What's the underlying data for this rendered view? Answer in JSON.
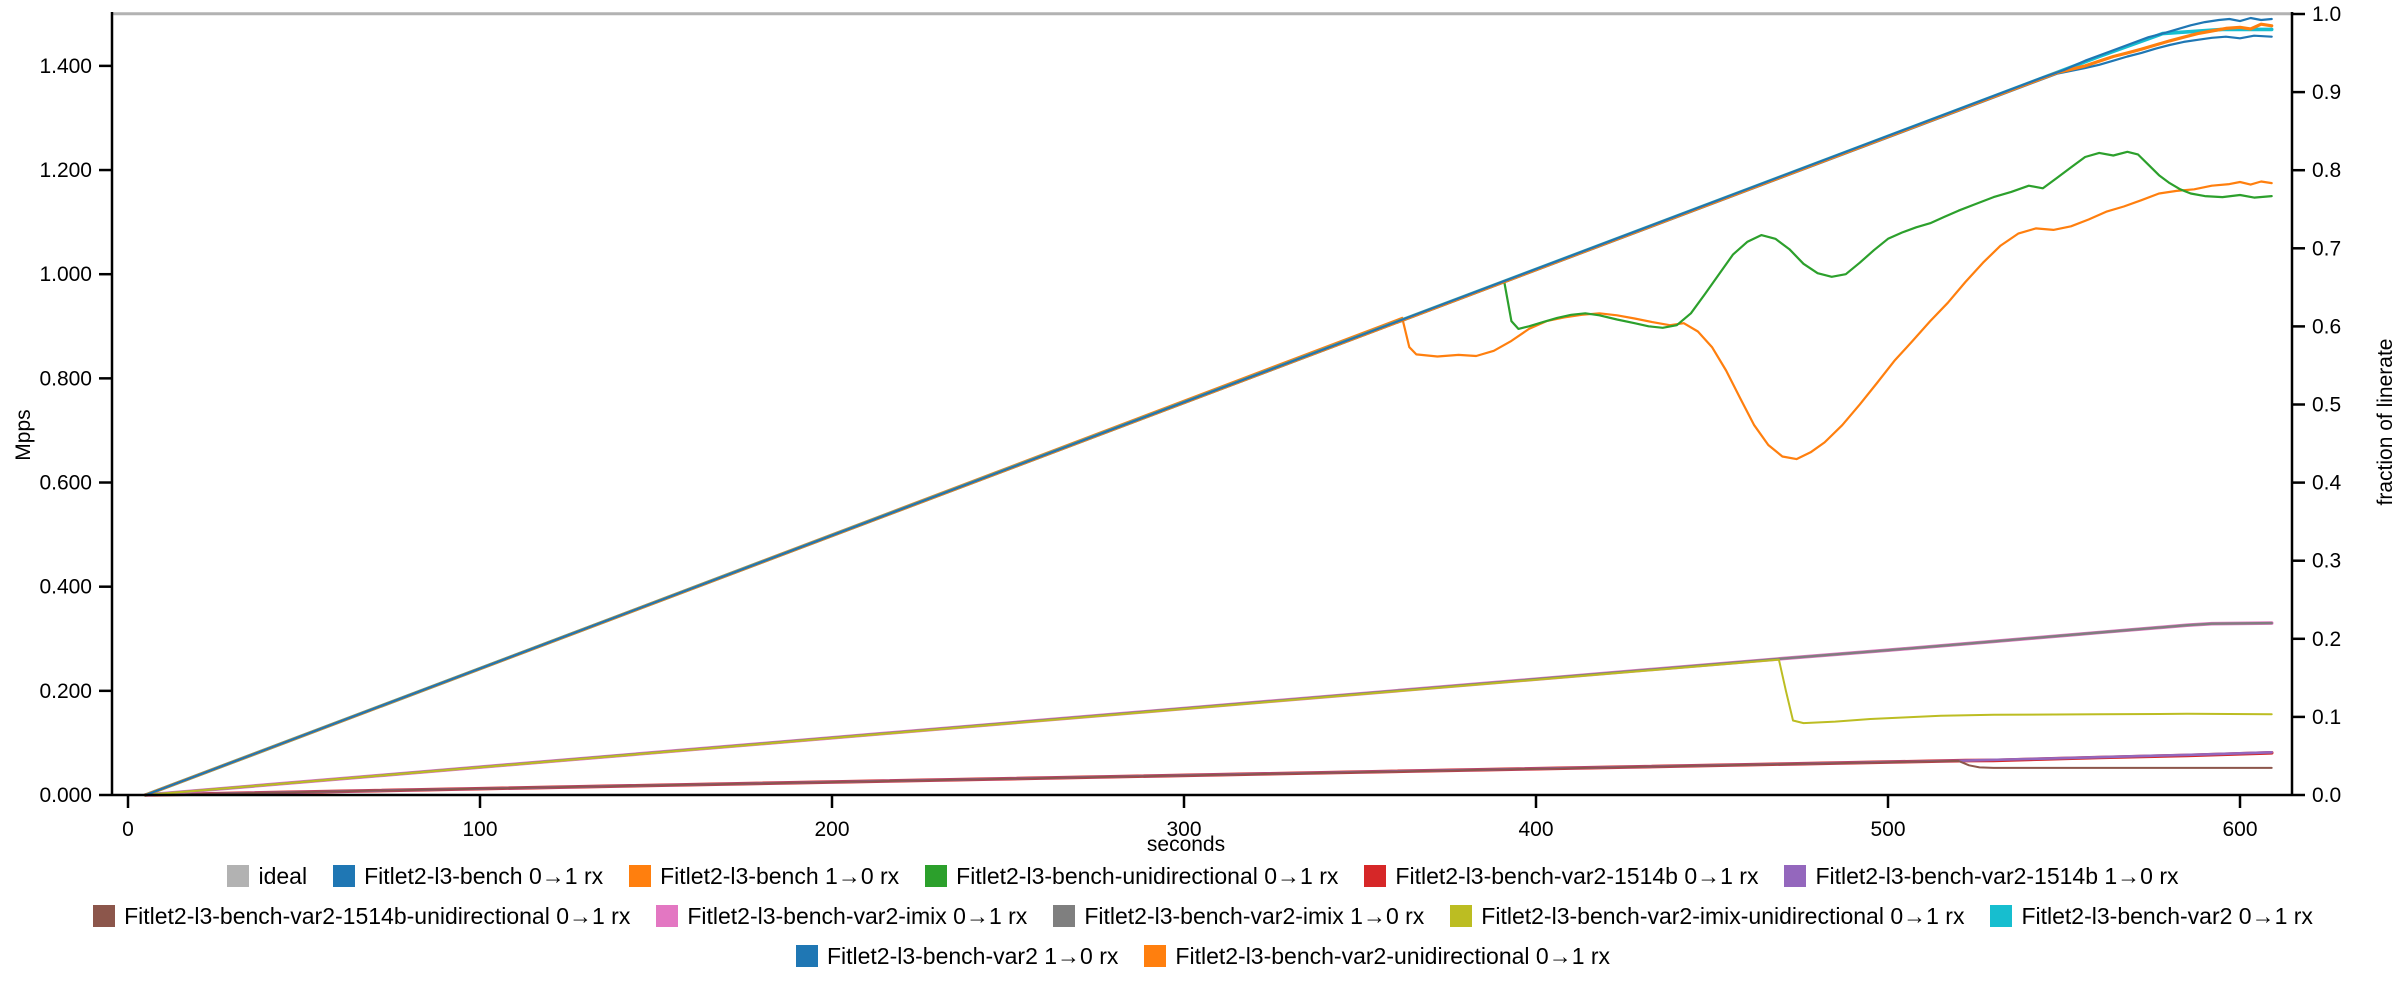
{
  "figure": {
    "background": "#ffffff",
    "axis_color": "#000000",
    "ideal_color": "#b2b2b2"
  },
  "chart_data": {
    "type": "line",
    "title": "",
    "xlabel": "seconds",
    "ylabel": "Mpps",
    "y2label": "fraction of linerate",
    "xlim": [
      0,
      615
    ],
    "ylim_mpps": [
      0.0,
      1.5
    ],
    "y2lim_fraction": [
      0.0,
      1.0
    ],
    "grid": false,
    "legend_position": "bottom",
    "x_ticks": [
      {
        "v": 0,
        "label": "0"
      },
      {
        "v": 100,
        "label": "100"
      },
      {
        "v": 200,
        "label": "200"
      },
      {
        "v": 300,
        "label": "300"
      },
      {
        "v": 400,
        "label": "400"
      },
      {
        "v": 500,
        "label": "500"
      },
      {
        "v": 600,
        "label": "600"
      }
    ],
    "y_ticks_left": [
      {
        "v": 0.0,
        "label": "0.000"
      },
      {
        "v": 0.2,
        "label": "0.200"
      },
      {
        "v": 0.4,
        "label": "0.400"
      },
      {
        "v": 0.6,
        "label": "0.600"
      },
      {
        "v": 0.8,
        "label": "0.800"
      },
      {
        "v": 1.0,
        "label": "1.000"
      },
      {
        "v": 1.2,
        "label": "1.200"
      },
      {
        "v": 1.4,
        "label": "1.400"
      }
    ],
    "y_ticks_right": [
      {
        "v": 0.0,
        "label": "0.0"
      },
      {
        "v": 0.1,
        "label": "0.1"
      },
      {
        "v": 0.2,
        "label": "0.2"
      },
      {
        "v": 0.3,
        "label": "0.3"
      },
      {
        "v": 0.4,
        "label": "0.4"
      },
      {
        "v": 0.5,
        "label": "0.5"
      },
      {
        "v": 0.6,
        "label": "0.6"
      },
      {
        "v": 0.7,
        "label": "0.7"
      },
      {
        "v": 0.8,
        "label": "0.8"
      },
      {
        "v": 0.9,
        "label": "0.9"
      },
      {
        "v": 1.0,
        "label": "1.0"
      }
    ],
    "series": [
      {
        "id": "ideal",
        "label": "ideal",
        "color": "#b2b2b2",
        "width": 3.0,
        "points": [
          [
            -4,
            1.5
          ],
          [
            615,
            1.5
          ]
        ]
      },
      {
        "id": "bench-1to0",
        "label": "Fitlet2-l3-bench 1→0 rx",
        "color": "#ff7f0e",
        "width": 2.2,
        "points": [
          [
            5,
            0
          ],
          [
            362,
            0.916
          ],
          [
            364,
            0.86
          ],
          [
            366,
            0.846
          ],
          [
            372,
            0.842
          ],
          [
            378,
            0.845
          ],
          [
            383,
            0.843
          ],
          [
            388,
            0.853
          ],
          [
            393,
            0.872
          ],
          [
            398,
            0.895
          ],
          [
            403,
            0.91
          ],
          [
            408,
            0.917
          ],
          [
            413,
            0.922
          ],
          [
            418,
            0.925
          ],
          [
            423,
            0.921
          ],
          [
            428,
            0.915
          ],
          [
            433,
            0.908
          ],
          [
            438,
            0.902
          ],
          [
            442,
            0.906
          ],
          [
            446,
            0.89
          ],
          [
            450,
            0.86
          ],
          [
            454,
            0.815
          ],
          [
            458,
            0.762
          ],
          [
            462,
            0.71
          ],
          [
            466,
            0.672
          ],
          [
            470,
            0.65
          ],
          [
            474,
            0.645
          ],
          [
            478,
            0.658
          ],
          [
            482,
            0.677
          ],
          [
            487,
            0.71
          ],
          [
            492,
            0.75
          ],
          [
            497,
            0.792
          ],
          [
            502,
            0.835
          ],
          [
            507,
            0.872
          ],
          [
            512,
            0.91
          ],
          [
            517,
            0.945
          ],
          [
            522,
            0.985
          ],
          [
            527,
            1.022
          ],
          [
            532,
            1.055
          ],
          [
            537,
            1.078
          ],
          [
            542,
            1.088
          ],
          [
            547,
            1.085
          ],
          [
            552,
            1.092
          ],
          [
            557,
            1.105
          ],
          [
            562,
            1.12
          ],
          [
            567,
            1.13
          ],
          [
            572,
            1.142
          ],
          [
            577,
            1.155
          ],
          [
            582,
            1.16
          ],
          [
            587,
            1.163
          ],
          [
            592,
            1.17
          ],
          [
            597,
            1.173
          ],
          [
            600,
            1.177
          ],
          [
            603,
            1.172
          ],
          [
            606,
            1.178
          ],
          [
            609,
            1.175
          ]
        ]
      },
      {
        "id": "bench-uni",
        "label": "Fitlet2-l3-bench-unidirectional 0→1 rx",
        "color": "#2ca02c",
        "width": 2.2,
        "points": [
          [
            5,
            0
          ],
          [
            391,
            0.985
          ],
          [
            393,
            0.91
          ],
          [
            395,
            0.895
          ],
          [
            398,
            0.9
          ],
          [
            402,
            0.908
          ],
          [
            406,
            0.916
          ],
          [
            410,
            0.922
          ],
          [
            414,
            0.925
          ],
          [
            418,
            0.921
          ],
          [
            423,
            0.913
          ],
          [
            428,
            0.906
          ],
          [
            432,
            0.9
          ],
          [
            436,
            0.897
          ],
          [
            440,
            0.902
          ],
          [
            444,
            0.925
          ],
          [
            448,
            0.962
          ],
          [
            452,
            1.0
          ],
          [
            456,
            1.038
          ],
          [
            460,
            1.062
          ],
          [
            464,
            1.075
          ],
          [
            468,
            1.068
          ],
          [
            472,
            1.048
          ],
          [
            476,
            1.02
          ],
          [
            480,
            1.002
          ],
          [
            484,
            0.995
          ],
          [
            488,
            1.0
          ],
          [
            492,
            1.022
          ],
          [
            496,
            1.046
          ],
          [
            500,
            1.068
          ],
          [
            504,
            1.08
          ],
          [
            508,
            1.09
          ],
          [
            512,
            1.098
          ],
          [
            516,
            1.11
          ],
          [
            520,
            1.122
          ],
          [
            525,
            1.135
          ],
          [
            530,
            1.148
          ],
          [
            535,
            1.158
          ],
          [
            540,
            1.17
          ],
          [
            544,
            1.165
          ],
          [
            548,
            1.185
          ],
          [
            552,
            1.205
          ],
          [
            556,
            1.225
          ],
          [
            560,
            1.233
          ],
          [
            564,
            1.228
          ],
          [
            568,
            1.235
          ],
          [
            571,
            1.23
          ],
          [
            574,
            1.21
          ],
          [
            577,
            1.19
          ],
          [
            580,
            1.175
          ],
          [
            583,
            1.163
          ],
          [
            586,
            1.155
          ],
          [
            590,
            1.15
          ],
          [
            595,
            1.148
          ],
          [
            600,
            1.152
          ],
          [
            604,
            1.147
          ],
          [
            609,
            1.15
          ]
        ]
      },
      {
        "id": "var2-1514b-0to1",
        "label": "Fitlet2-l3-bench-var2-1514b 0→1 rx",
        "color": "#d62728",
        "width": 3.6,
        "points": [
          [
            5,
            0
          ],
          [
            522,
            0.066
          ],
          [
            530,
            0.0665
          ],
          [
            560,
            0.072
          ],
          [
            585,
            0.076
          ],
          [
            609,
            0.081
          ]
        ]
      },
      {
        "id": "var2-1514b-1to0",
        "label": "Fitlet2-l3-bench-var2-1514b 1→0 rx",
        "color": "#9467bd",
        "width": 2.6,
        "points": [
          [
            5,
            0
          ],
          [
            522,
            0.066
          ],
          [
            560,
            0.0725
          ],
          [
            590,
            0.078
          ],
          [
            609,
            0.082
          ]
        ]
      },
      {
        "id": "var2-1514b-uni",
        "label": "Fitlet2-l3-bench-var2-1514b-unidirectional 0→1 rx",
        "color": "#8c564b",
        "width": 2.0,
        "points": [
          [
            5,
            0
          ],
          [
            520,
            0.0655
          ],
          [
            523,
            0.057
          ],
          [
            526,
            0.053
          ],
          [
            530,
            0.052
          ],
          [
            609,
            0.052
          ]
        ]
      },
      {
        "id": "var2-imix-0to1",
        "label": "Fitlet2-l3-bench-var2-imix 0→1 rx",
        "color": "#e377c2",
        "width": 3.6,
        "points": [
          [
            5,
            0
          ],
          [
            470,
            0.262
          ],
          [
            500,
            0.278
          ],
          [
            530,
            0.295
          ],
          [
            560,
            0.312
          ],
          [
            585,
            0.326
          ],
          [
            592,
            0.329
          ],
          [
            609,
            0.33
          ]
        ]
      },
      {
        "id": "var2-imix-1to0",
        "label": "Fitlet2-l3-bench-var2-imix 1→0 rx",
        "color": "#7f7f7f",
        "width": 2.4,
        "points": [
          [
            5,
            0
          ],
          [
            470,
            0.262
          ],
          [
            500,
            0.278
          ],
          [
            530,
            0.295
          ],
          [
            560,
            0.312
          ],
          [
            585,
            0.326
          ],
          [
            592,
            0.329
          ],
          [
            609,
            0.33
          ]
        ]
      },
      {
        "id": "var2-imix-uni",
        "label": "Fitlet2-l3-bench-var2-imix-unidirectional 0→1 rx",
        "color": "#bcbd22",
        "width": 2.0,
        "points": [
          [
            5,
            0
          ],
          [
            469,
            0.26
          ],
          [
            471,
            0.2
          ],
          [
            473,
            0.143
          ],
          [
            476,
            0.138
          ],
          [
            485,
            0.141
          ],
          [
            495,
            0.146
          ],
          [
            505,
            0.149
          ],
          [
            515,
            0.152
          ],
          [
            530,
            0.154
          ],
          [
            560,
            0.155
          ],
          [
            585,
            0.156
          ],
          [
            609,
            0.155
          ]
        ]
      },
      {
        "id": "var2-0to1",
        "label": "Fitlet2-l3-bench-var2 0→1 rx",
        "color": "#17becf",
        "width": 3.6,
        "points": [
          [
            5,
            0
          ],
          [
            560,
            1.418
          ],
          [
            578,
            1.462
          ],
          [
            595,
            1.47
          ],
          [
            609,
            1.47
          ]
        ]
      },
      {
        "id": "var2-1to0",
        "label": "Fitlet2-l3-bench-var2 1→0 rx",
        "color": "#1f77b4",
        "width": 2.2,
        "points": [
          [
            5,
            0
          ],
          [
            548,
            1.385
          ],
          [
            556,
            1.396
          ],
          [
            560,
            1.402
          ],
          [
            564,
            1.41
          ],
          [
            568,
            1.418
          ],
          [
            572,
            1.425
          ],
          [
            576,
            1.433
          ],
          [
            580,
            1.44
          ],
          [
            584,
            1.446
          ],
          [
            588,
            1.45
          ],
          [
            592,
            1.454
          ],
          [
            596,
            1.456
          ],
          [
            600,
            1.453
          ],
          [
            604,
            1.458
          ],
          [
            609,
            1.456
          ]
        ]
      },
      {
        "id": "var2-uni",
        "label": "Fitlet2-l3-bench-var2-unidirectional 0→1 rx",
        "color": "#ff7f0e",
        "width": 3.2,
        "points": [
          [
            5,
            0
          ],
          [
            548,
            1.387
          ],
          [
            556,
            1.4
          ],
          [
            560,
            1.409
          ],
          [
            564,
            1.418
          ],
          [
            568,
            1.425
          ],
          [
            572,
            1.432
          ],
          [
            576,
            1.44
          ],
          [
            580,
            1.448
          ],
          [
            584,
            1.455
          ],
          [
            588,
            1.462
          ],
          [
            592,
            1.467
          ],
          [
            596,
            1.472
          ],
          [
            600,
            1.474
          ],
          [
            603,
            1.471
          ],
          [
            606,
            1.48
          ],
          [
            609,
            1.477
          ]
        ]
      },
      {
        "id": "bench-0to1",
        "label": "Fitlet2-l3-bench 0→1 rx",
        "color": "#1f77b4",
        "width": 2.2,
        "points": [
          [
            5,
            0
          ],
          [
            544,
            1.378
          ],
          [
            550,
            1.392
          ],
          [
            556,
            1.41
          ],
          [
            562,
            1.425
          ],
          [
            568,
            1.44
          ],
          [
            574,
            1.455
          ],
          [
            578,
            1.462
          ],
          [
            582,
            1.47
          ],
          [
            586,
            1.478
          ],
          [
            590,
            1.484
          ],
          [
            594,
            1.488
          ],
          [
            597,
            1.49
          ],
          [
            600,
            1.486
          ],
          [
            603,
            1.492
          ],
          [
            606,
            1.488
          ],
          [
            609,
            1.49
          ]
        ]
      }
    ]
  },
  "legend": {
    "rows": [
      [
        {
          "label": "ideal",
          "color": "#b2b2b2"
        },
        {
          "label": "Fitlet2-l3-bench 0→1 rx",
          "color": "#1f77b4"
        },
        {
          "label": "Fitlet2-l3-bench 1→0 rx",
          "color": "#ff7f0e"
        },
        {
          "label": "Fitlet2-l3-bench-unidirectional 0→1 rx",
          "color": "#2ca02c"
        },
        {
          "label": "Fitlet2-l3-bench-var2-1514b 0→1 rx",
          "color": "#d62728"
        },
        {
          "label": "Fitlet2-l3-bench-var2-1514b 1→0 rx",
          "color": "#9467bd"
        }
      ],
      [
        {
          "label": "Fitlet2-l3-bench-var2-1514b-unidirectional 0→1 rx",
          "color": "#8c564b"
        },
        {
          "label": "Fitlet2-l3-bench-var2-imix 0→1 rx",
          "color": "#e377c2"
        },
        {
          "label": "Fitlet2-l3-bench-var2-imix 1→0 rx",
          "color": "#7f7f7f"
        },
        {
          "label": "Fitlet2-l3-bench-var2-imix-unidirectional 0→1 rx",
          "color": "#bcbd22"
        },
        {
          "label": "Fitlet2-l3-bench-var2 0→1 rx",
          "color": "#17becf"
        }
      ],
      [
        {
          "label": "Fitlet2-l3-bench-var2 1→0 rx",
          "color": "#1f77b4"
        },
        {
          "label": "Fitlet2-l3-bench-var2-unidirectional 0→1 rx",
          "color": "#ff7f0e"
        }
      ]
    ]
  }
}
